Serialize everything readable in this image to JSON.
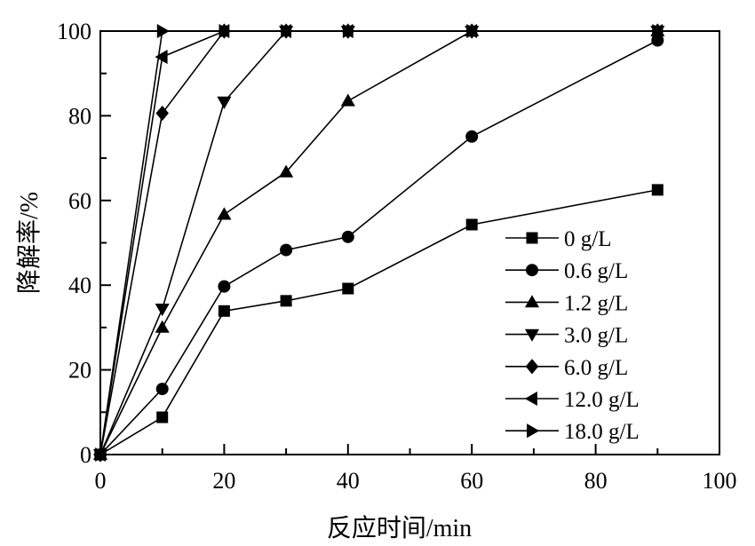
{
  "chart_data": {
    "type": "line",
    "title": "",
    "xlabel": "反应时间/min",
    "ylabel": "降解率/%",
    "xlim": [
      0,
      100
    ],
    "ylim": [
      0,
      100
    ],
    "xticks": [
      0,
      20,
      40,
      60,
      80,
      100
    ],
    "yticks": [
      0,
      20,
      40,
      60,
      80,
      100
    ],
    "grid": false,
    "legend_position": "bottom-right",
    "x": [
      0,
      10,
      20,
      30,
      40,
      60,
      90
    ],
    "series": [
      {
        "name": "0 g/L",
        "marker": "square",
        "values": [
          0,
          8.8,
          33.9,
          36.3,
          39.2,
          54.3,
          62.5
        ]
      },
      {
        "name": "0.6 g/L",
        "marker": "circle",
        "values": [
          0,
          15.5,
          39.7,
          48.3,
          51.4,
          75.1,
          97.8
        ]
      },
      {
        "name": "1.2 g/L",
        "marker": "triangle-up",
        "values": [
          0,
          30.0,
          56.7,
          66.7,
          83.5,
          100,
          100
        ]
      },
      {
        "name": "3.0 g/L",
        "marker": "triangle-down",
        "values": [
          0,
          34.4,
          83.3,
          100,
          100,
          100,
          100
        ]
      },
      {
        "name": "6.0 g/L",
        "marker": "diamond",
        "values": [
          0,
          80.6,
          100,
          100,
          100,
          100,
          100
        ]
      },
      {
        "name": "12.0 g/L",
        "marker": "triangle-left",
        "values": [
          0,
          93.9,
          100,
          100,
          100,
          100,
          100
        ]
      },
      {
        "name": "18.0 g/L",
        "marker": "triangle-right",
        "values": [
          0,
          100,
          100,
          100,
          100,
          100,
          100
        ]
      }
    ],
    "colors": {
      "line": "#000000",
      "background": "#ffffff"
    }
  }
}
